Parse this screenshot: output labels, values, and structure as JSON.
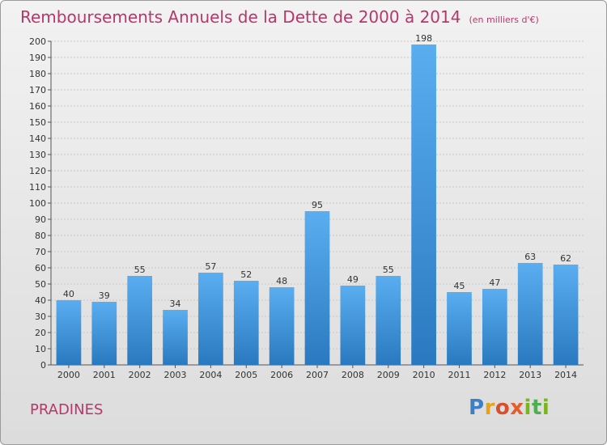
{
  "header": {
    "title": "Remboursements Annuels de la Dette de 2000 à 2014",
    "subtitle": "(en milliers d'€)"
  },
  "footer": {
    "place": "PRADINES",
    "logo_letters": [
      "P",
      "r",
      "o",
      "x",
      "i",
      "t",
      "i"
    ]
  },
  "colors": {
    "bar_top": "#5aaef0",
    "bar_bottom": "#2a79c0",
    "title": "#b5386a"
  },
  "chart_data": {
    "type": "bar",
    "title": "Remboursements Annuels de la Dette de 2000 à 2014",
    "subtitle": "(en milliers d'€)",
    "categories": [
      "2000",
      "2001",
      "2002",
      "2003",
      "2004",
      "2005",
      "2006",
      "2007",
      "2008",
      "2009",
      "2010",
      "2011",
      "2012",
      "2013",
      "2014"
    ],
    "values": [
      40,
      39,
      55,
      34,
      57,
      52,
      48,
      95,
      49,
      55,
      198,
      45,
      47,
      63,
      62
    ],
    "ylim": [
      0,
      200
    ],
    "ytick_step": 10,
    "grid": true,
    "xlabel": "",
    "ylabel": ""
  }
}
